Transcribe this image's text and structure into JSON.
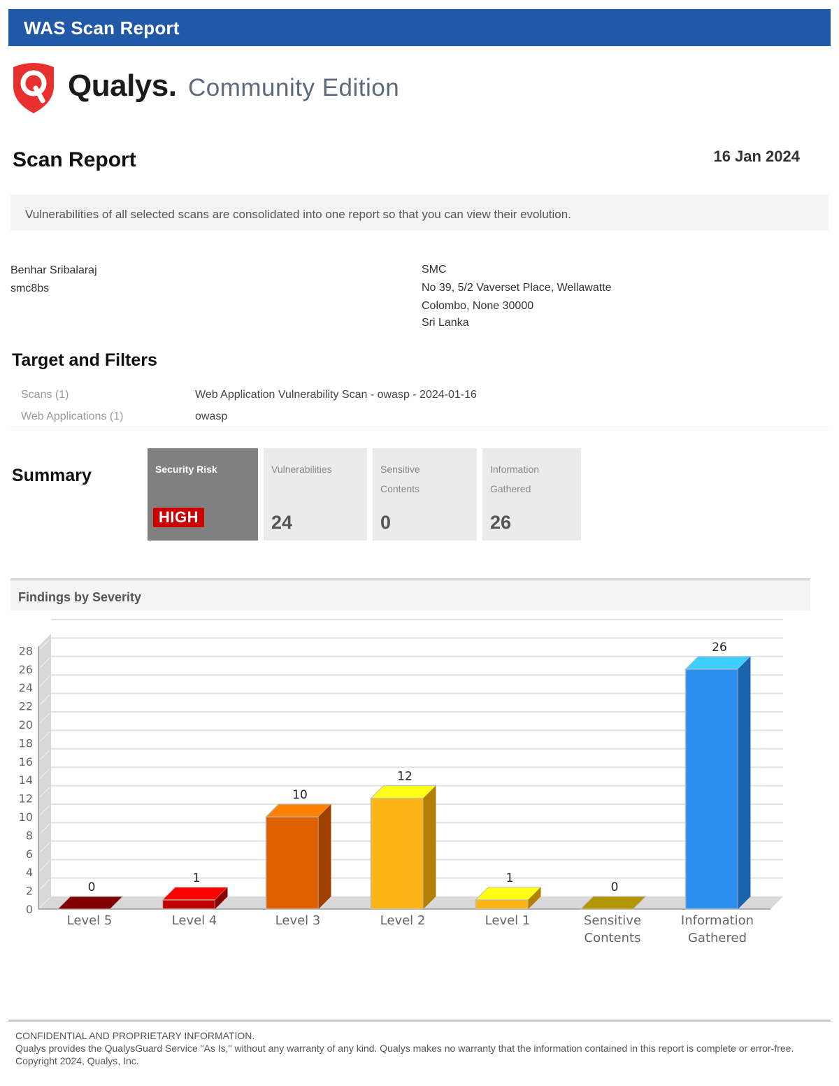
{
  "banner": {
    "title": "WAS Scan Report",
    "color": "#2258a8"
  },
  "logo": {
    "brand": "Qualys.",
    "edition": "Community Edition",
    "shield_color": "#e8302e"
  },
  "header": {
    "title": "Scan Report",
    "date": "16 Jan 2024"
  },
  "notice": {
    "text": "Vulnerabilities of all selected scans are consolidated into one report so that you can view their evolution."
  },
  "user": {
    "name": "Benhar Sribalaraj",
    "login": "smc8bs"
  },
  "company": {
    "name": "SMC",
    "address_line1": "No 39, 5/2 Vaverset Place, Wellawatte",
    "address_line2": "Colombo, None 30000",
    "country": "Sri Lanka"
  },
  "target_filters": {
    "title": "Target and Filters",
    "rows": [
      {
        "label": "Scans (1)",
        "value": "Web Application Vulnerability Scan - owasp - 2024-01-16"
      },
      {
        "label": "Web Applications (1)",
        "value": "owasp"
      }
    ]
  },
  "summary": {
    "title": "Summary",
    "security_risk": {
      "label": "Security Risk",
      "value": "HIGH",
      "badge_color": "#cc0000"
    },
    "tiles": [
      {
        "label": "Vulnerabilities",
        "value": "24"
      },
      {
        "label": "Sensitive Contents",
        "value": "0"
      },
      {
        "label": "Information Gathered",
        "value": "26"
      }
    ]
  },
  "findings": {
    "title": "Findings by Severity"
  },
  "chart_data": {
    "type": "bar",
    "title": "Findings by Severity",
    "xlabel": "",
    "ylabel": "",
    "ylim": [
      0,
      28
    ],
    "yticks": [
      0,
      2,
      4,
      6,
      8,
      10,
      12,
      14,
      16,
      18,
      20,
      22,
      24,
      26,
      28
    ],
    "grid": true,
    "legend": "none",
    "style": "3d",
    "categories": [
      "Level 5",
      "Level 4",
      "Level 3",
      "Level 2",
      "Level 1",
      "Sensitive Contents",
      "Information Gathered"
    ],
    "values": [
      0,
      1,
      10,
      12,
      1,
      0,
      26
    ],
    "data_labels": [
      "0",
      "1",
      "10",
      "12",
      "1",
      "0",
      "26"
    ],
    "colors": [
      {
        "front": "#8b0000",
        "top": "#800000",
        "side": "#5a0000"
      },
      {
        "front": "#c00000",
        "top": "#ff0000",
        "side": "#8a0000"
      },
      {
        "front": "#e06000",
        "top": "#ff8000",
        "side": "#a04000"
      },
      {
        "front": "#fcb514",
        "top": "#ffff14",
        "side": "#b38006"
      },
      {
        "front": "#fcb514",
        "top": "#ffff14",
        "side": "#b38006"
      },
      {
        "front": "#b39500",
        "top": "#b39500",
        "side": "#7a6500"
      },
      {
        "front": "#2a8ff0",
        "top": "#3dd0ff",
        "side": "#1b64ad"
      }
    ]
  },
  "footer": {
    "heading": "CONFIDENTIAL AND PROPRIETARY INFORMATION.",
    "text": " Qualys provides the QualysGuard Service \"As Is,\" without any warranty of any kind. Qualys makes no warranty that the information contained in this report is complete or error-free. Copyright 2024, Qualys, Inc."
  }
}
